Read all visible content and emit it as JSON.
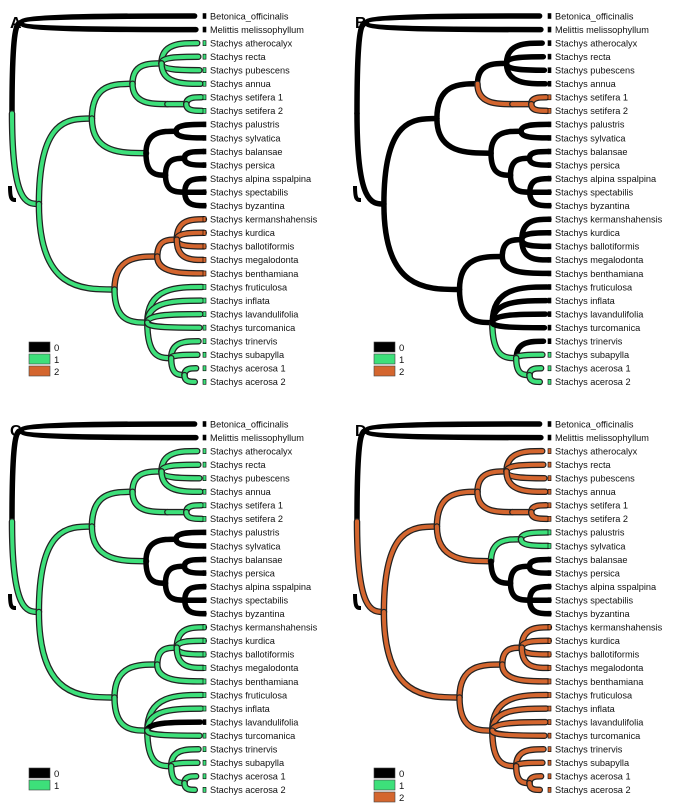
{
  "colors": {
    "state0": "#000000",
    "state1": "#3de07a",
    "state2": "#d4662f"
  },
  "taxa": [
    "Betonica_officinalis",
    "Melittis  melissophyllum",
    "Stachys  atherocalyx",
    "Stachys  recta",
    "Stachys  pubescens",
    "Stachys  annua",
    "Stachys  setifera 1",
    "Stachys  setifera 2",
    "Stachys  palustris",
    "Stachys  sylvatica",
    "Stachys  balansae",
    "Stachys  persica",
    "Stachys  alpina  sspalpina",
    "Stachys  spectabilis",
    "Stachys  byzantina",
    "Stachys  kermanshahensis",
    "Stachys  kurdica",
    "Stachys  ballotiformis",
    "Stachys  megalodonta",
    "Stachys  benthamiana",
    "Stachys  fruticulosa",
    "Stachys  inflata",
    "Stachys  lavandulifolia",
    "Stachys  turcomanica",
    "Stachys  trinervis",
    "Stachys  subapylla",
    "Stachys  acerosa  1",
    "Stachys  acerosa  2"
  ],
  "panels": [
    {
      "label": "A",
      "legend": [
        "0",
        "1",
        "2"
      ],
      "taxa_overrides": {},
      "branch_states": {
        "n_root": 0,
        "n_out": 0,
        "n_ingroup": 1,
        "n_upper": 1,
        "n_lower": 1,
        "n_g1": 1,
        "n_g1a": 1,
        "n_g1b": 1,
        "n_g1b1": 1,
        "n_g2": 1,
        "n_g2a": 0,
        "n_g2b": 0,
        "n_g2b1": 0,
        "n_g2b2": 0,
        "n_g3": 2,
        "n_g3a": 2,
        "n_g4": 1,
        "n_g4a": 1,
        "n_g4b": 1,
        "t0": 0,
        "t1": 0,
        "t2": 1,
        "t3": 1,
        "t4": 1,
        "t5": 1,
        "t6": 1,
        "t7": 1,
        "t8": 0,
        "t9": 0,
        "t10": 0,
        "t11": 0,
        "t12": 0,
        "t13": 0,
        "t14": 0,
        "t15": 2,
        "t16": 2,
        "t17": 2,
        "t18": 2,
        "t19": 2,
        "t20": 1,
        "t21": 1,
        "t22": 1,
        "t23": 1,
        "t24": 1,
        "t25": 1,
        "t26": 1,
        "t27": 1
      }
    },
    {
      "label": "B",
      "legend": [
        "0",
        "1",
        "2"
      ],
      "taxa_overrides": {},
      "branch_states": {
        "n_root": 0,
        "n_out": 0,
        "n_ingroup": 0,
        "n_upper": 0,
        "n_lower": 0,
        "n_g1": 0,
        "n_g1a": 0,
        "n_g1b": 2,
        "n_g1b1": 2,
        "n_g2": 0,
        "n_g2a": 0,
        "n_g2b": 0,
        "n_g2b1": 0,
        "n_g2b2": 0,
        "n_g3": 0,
        "n_g3a": 0,
        "n_g4": 0,
        "n_g4a": 1,
        "n_g4b": 1,
        "t0": 0,
        "t1": 0,
        "t2": 0,
        "t3": 0,
        "t4": 0,
        "t5": 0,
        "t6": 2,
        "t7": 2,
        "t8": 0,
        "t9": 0,
        "t10": 0,
        "t11": 0,
        "t12": 0,
        "t13": 0,
        "t14": 0,
        "t15": 0,
        "t16": 0,
        "t17": 0,
        "t18": 0,
        "t19": 0,
        "t20": 0,
        "t21": 0,
        "t22": 0,
        "t23": 0,
        "t24": 0,
        "t25": 1,
        "t26": 1,
        "t27": 1
      }
    },
    {
      "label": "C",
      "legend": [
        "0",
        "1"
      ],
      "taxa_overrides": {},
      "branch_states": {
        "n_root": 0,
        "n_out": 0,
        "n_ingroup": 1,
        "n_upper": 1,
        "n_lower": 1,
        "n_g1": 1,
        "n_g1a": 1,
        "n_g1b": 1,
        "n_g1b1": 1,
        "n_g2": 1,
        "n_g2a": 0,
        "n_g2b": 0,
        "n_g2b1": 0,
        "n_g2b2": 0,
        "n_g3": 1,
        "n_g3a": 1,
        "n_g4": 1,
        "n_g4a": 1,
        "n_g4b": 1,
        "t0": 0,
        "t1": 0,
        "t2": 1,
        "t3": 1,
        "t4": 1,
        "t5": 1,
        "t6": 1,
        "t7": 1,
        "t8": 0,
        "t9": 0,
        "t10": 0,
        "t11": 0,
        "t12": 0,
        "t13": 0,
        "t14": 0,
        "t15": 1,
        "t16": 1,
        "t17": 1,
        "t18": 1,
        "t19": 1,
        "t20": 1,
        "t21": 1,
        "t22": 0,
        "t23": 1,
        "t24": 1,
        "t25": 1,
        "t26": 1,
        "t27": 1
      }
    },
    {
      "label": "D",
      "legend": [
        "0",
        "1",
        "2"
      ],
      "taxa_overrides": {
        "26": "Stachys  acerosa  1",
        "27": "Stachys  acerosa  2"
      },
      "branch_states": {
        "n_root": 0,
        "n_out": 0,
        "n_ingroup": 2,
        "n_upper": 2,
        "n_lower": 2,
        "n_g1": 2,
        "n_g1a": 2,
        "n_g1b": 2,
        "n_g1b1": 2,
        "n_g2": 2,
        "n_g2a": 1,
        "n_g2b": 0,
        "n_g2b1": 0,
        "n_g2b2": 0,
        "n_g3": 2,
        "n_g3a": 2,
        "n_g4": 2,
        "n_g4a": 2,
        "n_g4b": 2,
        "t0": 0,
        "t1": 0,
        "t2": 2,
        "t3": 2,
        "t4": 2,
        "t5": 2,
        "t6": 2,
        "t7": 2,
        "t8": 1,
        "t9": 1,
        "t10": 0,
        "t11": 0,
        "t12": 0,
        "t13": 0,
        "t14": 0,
        "t15": 2,
        "t16": 2,
        "t17": 2,
        "t18": 2,
        "t19": 2,
        "t20": 2,
        "t21": 2,
        "t22": 2,
        "t23": 2,
        "t24": 2,
        "t25": 2,
        "t26": 2,
        "t27": 2
      }
    }
  ]
}
